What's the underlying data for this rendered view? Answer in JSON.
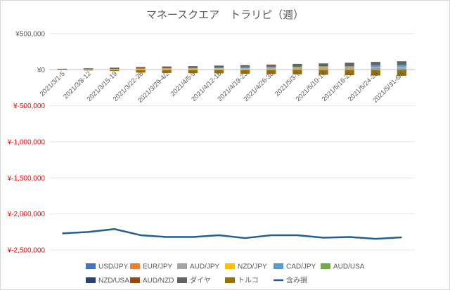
{
  "chart_data": {
    "type": "bar",
    "title": "マネースクエア　トラリピ（週）",
    "xlabel": "",
    "ylabel": "",
    "ylim": [
      -2500000,
      500000
    ],
    "yticks": [
      {
        "value": 500000,
        "label": "¥500,000",
        "color": "#595959"
      },
      {
        "value": 0,
        "label": "¥0",
        "color": "#595959"
      },
      {
        "value": -500000,
        "label": "¥-500,000",
        "color": "#ff0000"
      },
      {
        "value": -1000000,
        "label": "¥-1,000,000",
        "color": "#ff0000"
      },
      {
        "value": -1500000,
        "label": "¥-1,500,000",
        "color": "#ff0000"
      },
      {
        "value": -2000000,
        "label": "¥-2,000,000",
        "color": "#ff0000"
      },
      {
        "value": -2500000,
        "label": "¥-2,500,000",
        "color": "#ff0000"
      }
    ],
    "categories": [
      "2021/3/1-5",
      "2021/3/8-12",
      "2021/3/15-19",
      "2021/3/22-26",
      "2021/3/29-4/2",
      "2021/4/5-9",
      "2021/4/12-16",
      "2021/4/19-23",
      "2021/4/26-30",
      "2021/5/3-7",
      "2021/5/10-14",
      "2021/5/16-21",
      "2021/5/24-28",
      "2021/5/31-6/4"
    ],
    "series": [
      {
        "name": "USD/JPY",
        "kind": "bar",
        "color": "#4472c4",
        "values": [
          2000,
          3000,
          4000,
          5000,
          6000,
          6000,
          7000,
          7000,
          8000,
          9000,
          10000,
          11000,
          12000,
          13000
        ]
      },
      {
        "name": "EUR/JPY",
        "kind": "bar",
        "color": "#ed7d31",
        "values": [
          1000,
          1000,
          2000,
          2000,
          3000,
          3000,
          3000,
          4000,
          4000,
          5000,
          5000,
          6000,
          6000,
          7000
        ]
      },
      {
        "name": "AUD/JPY",
        "kind": "bar",
        "color": "#a5a5a5",
        "values": [
          2000,
          3000,
          4000,
          5000,
          6000,
          6000,
          7000,
          8000,
          9000,
          10000,
          11000,
          12000,
          13000,
          14000
        ]
      },
      {
        "name": "NZD/JPY",
        "kind": "bar",
        "color": "#ffc000",
        "values": [
          1000,
          1000,
          2000,
          2000,
          2000,
          3000,
          3000,
          3000,
          4000,
          4000,
          5000,
          5000,
          6000,
          6000
        ]
      },
      {
        "name": "CAD/JPY",
        "kind": "bar",
        "color": "#5b9bd5",
        "values": [
          2000,
          3000,
          4000,
          6000,
          7000,
          8000,
          9000,
          10000,
          11000,
          12000,
          13000,
          14000,
          15000,
          16000
        ]
      },
      {
        "name": "AUD/USA",
        "kind": "bar",
        "color": "#70ad47",
        "values": [
          1000,
          2000,
          3000,
          3000,
          4000,
          4000,
          5000,
          5000,
          6000,
          7000,
          7000,
          8000,
          9000,
          10000
        ]
      },
      {
        "name": "NZD/USA",
        "kind": "bar",
        "color": "#264478",
        "values": [
          1000,
          2000,
          2000,
          3000,
          3000,
          4000,
          4000,
          5000,
          5000,
          6000,
          6000,
          7000,
          8000,
          9000
        ]
      },
      {
        "name": "AUD/NZD",
        "kind": "bar",
        "color": "#9e480e",
        "values": [
          1000,
          1000,
          1000,
          2000,
          2000,
          2000,
          3000,
          3000,
          3000,
          4000,
          4000,
          4000,
          5000,
          5000
        ]
      },
      {
        "name": "ダイヤ",
        "kind": "bar",
        "color": "#636363",
        "values": [
          3000,
          5000,
          7000,
          10000,
          13000,
          15000,
          17000,
          19000,
          22000,
          25000,
          27000,
          30000,
          35000,
          38000
        ]
      },
      {
        "name": "トルコ",
        "kind": "bar",
        "color": "#997300",
        "values": [
          -5000,
          -10000,
          -18000,
          -40000,
          -45000,
          -48000,
          -50000,
          -55000,
          -60000,
          -65000,
          -70000,
          -75000,
          -80000,
          -85000
        ]
      },
      {
        "name": "含み損",
        "kind": "line",
        "color": "#255e91",
        "values": [
          -2270000,
          -2250000,
          -2210000,
          -2295000,
          -2320000,
          -2320000,
          -2295000,
          -2335000,
          -2295000,
          -2295000,
          -2330000,
          -2320000,
          -2345000,
          -2325000
        ]
      }
    ]
  }
}
